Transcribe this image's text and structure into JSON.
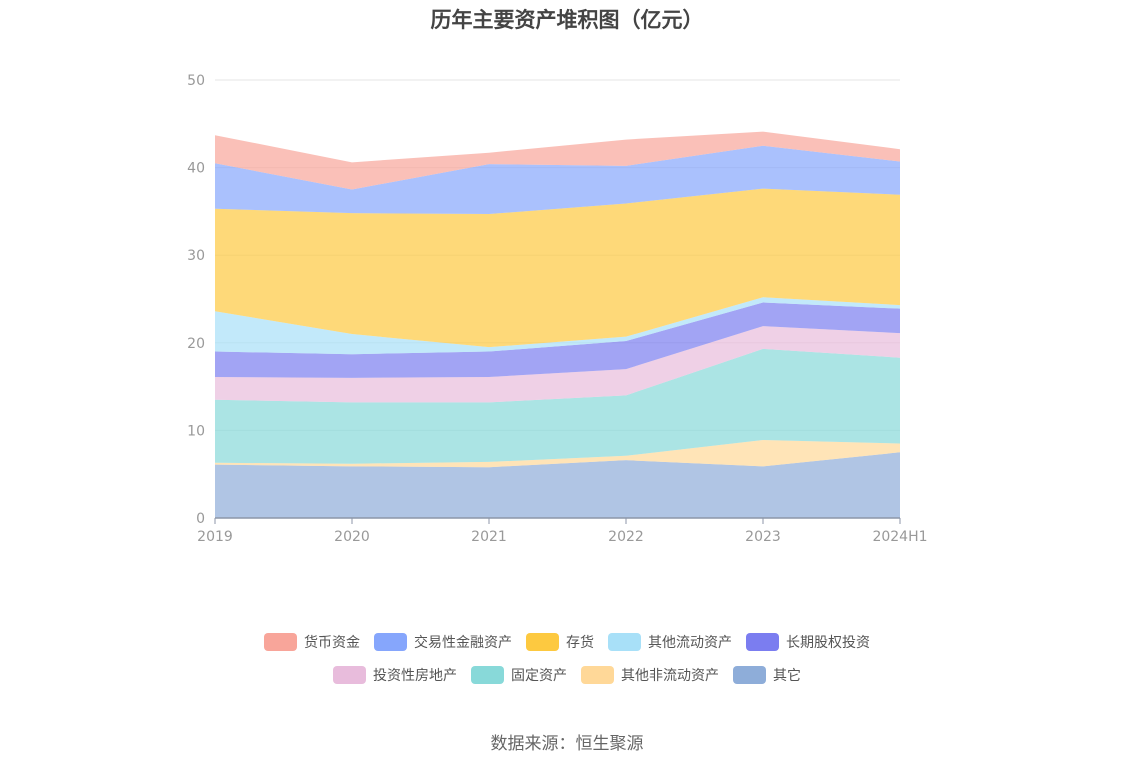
{
  "chart_data": {
    "type": "area",
    "stacked": true,
    "title": "历年主要资产堆积图（亿元）",
    "categories": [
      "2019",
      "2020",
      "2021",
      "2022",
      "2023",
      "2024H1"
    ],
    "ylim": [
      0,
      50
    ],
    "yticks": [
      0,
      10,
      20,
      30,
      40,
      50
    ],
    "grid": true,
    "legend_position": "bottom",
    "series": [
      {
        "name": "其它",
        "color": "#8eadd9",
        "values": [
          6.1,
          5.9,
          5.8,
          6.6,
          5.9,
          7.5
        ]
      },
      {
        "name": "其他非流动资产",
        "color": "#ffd898",
        "values": [
          0.2,
          0.3,
          0.6,
          0.5,
          3.0,
          1.0
        ]
      },
      {
        "name": "固定资产",
        "color": "#88d9d9",
        "values": [
          7.2,
          7.0,
          6.8,
          6.9,
          10.4,
          9.8
        ]
      },
      {
        "name": "投资性房地产",
        "color": "#e8bcdc",
        "values": [
          2.6,
          2.8,
          2.9,
          3.0,
          2.6,
          2.8
        ]
      },
      {
        "name": "长期股权投资",
        "color": "#7b7df0",
        "values": [
          2.9,
          2.7,
          2.9,
          3.2,
          2.7,
          2.8
        ]
      },
      {
        "name": "其他流动资产",
        "color": "#a8e0f8",
        "values": [
          4.6,
          2.3,
          0.5,
          0.5,
          0.6,
          0.4
        ]
      },
      {
        "name": "存货",
        "color": "#fdc940",
        "values": [
          11.7,
          13.8,
          15.2,
          15.2,
          12.4,
          12.6
        ]
      },
      {
        "name": "交易性金融资产",
        "color": "#86a6fc",
        "values": [
          5.2,
          2.7,
          5.7,
          4.3,
          4.9,
          3.8
        ]
      },
      {
        "name": "货币资金",
        "color": "#f8a59a",
        "values": [
          3.2,
          3.1,
          1.3,
          3.0,
          1.6,
          1.4
        ]
      }
    ]
  },
  "legend": {
    "row1": [
      "货币资金",
      "交易性金融资产",
      "存货",
      "其他流动资产",
      "长期股权投资"
    ],
    "row2": [
      "投资性房地产",
      "固定资产",
      "其他非流动资产",
      "其它"
    ]
  },
  "source": "数据来源：恒生聚源"
}
